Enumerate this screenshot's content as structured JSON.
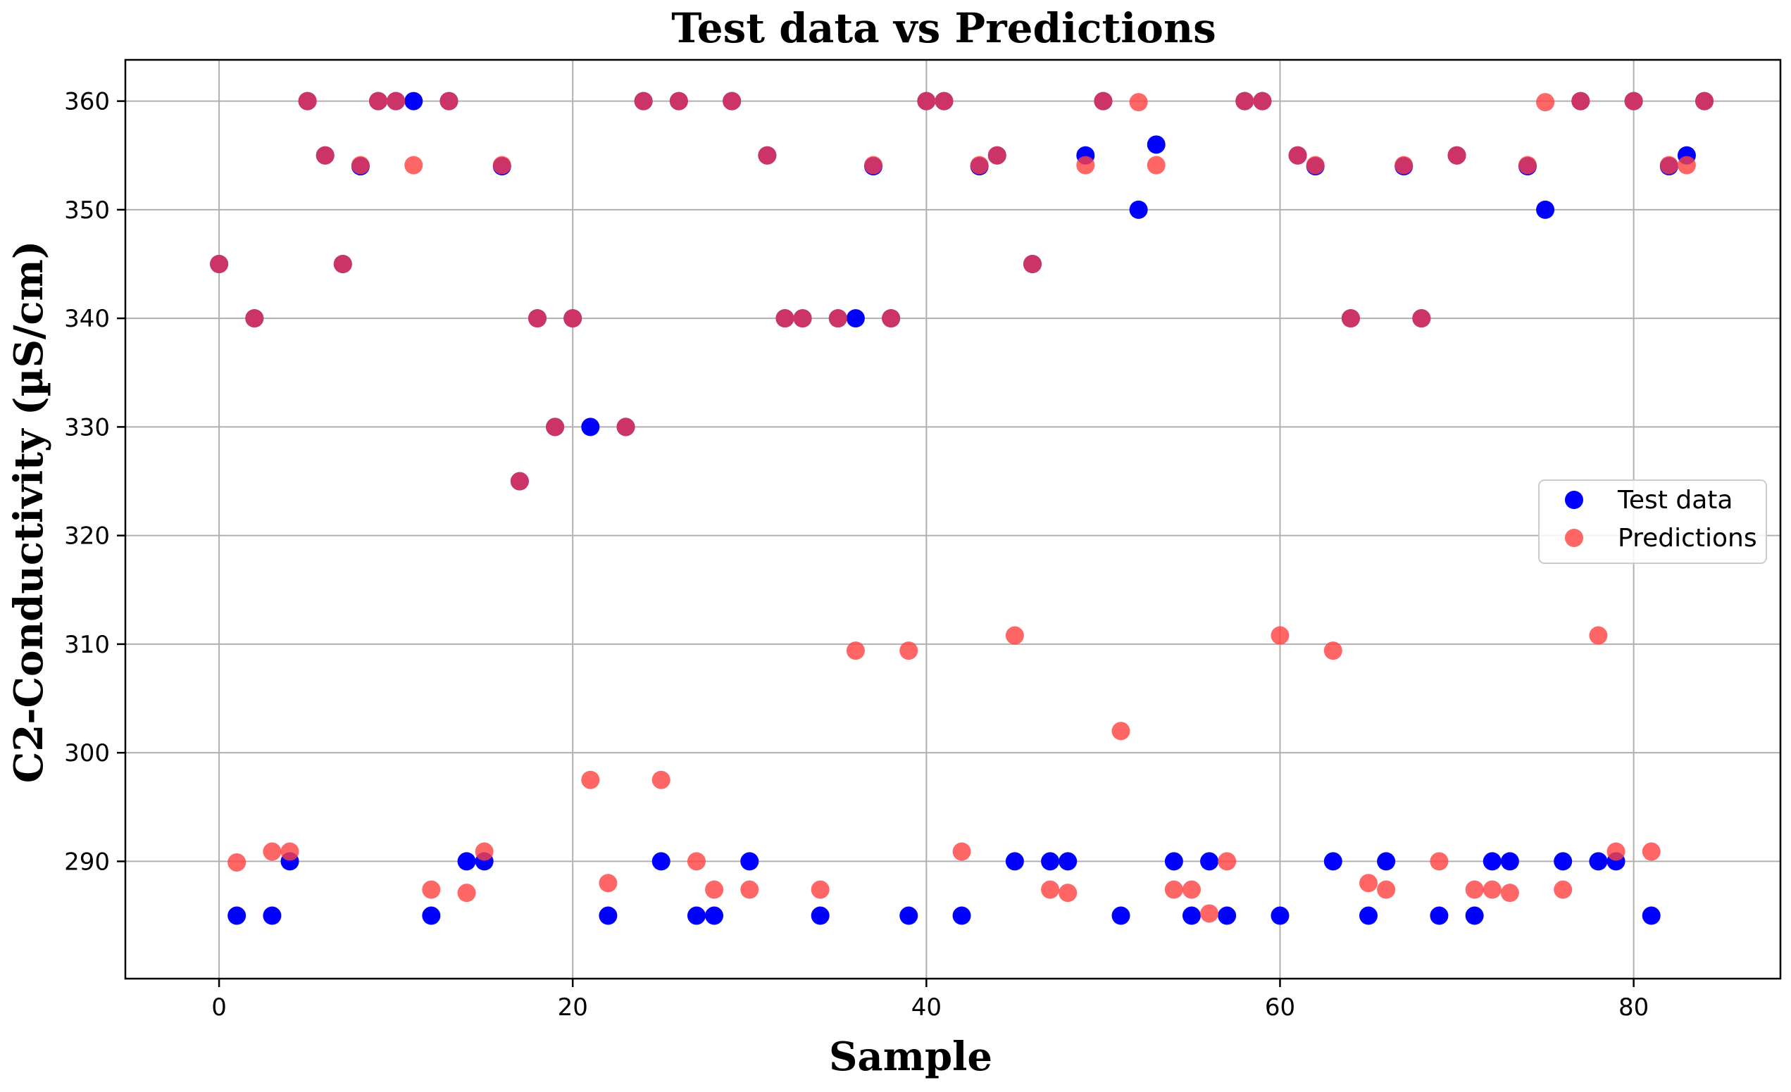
{
  "chart_data": {
    "type": "scatter",
    "title": "Test data vs Predictions",
    "xlabel": "Sample",
    "ylabel": "C2-Conductivity (µS/cm)",
    "xlim": [
      -5.3,
      88.3
    ],
    "ylim": [
      279.2,
      363.8
    ],
    "xticks": [
      0,
      20,
      40,
      60,
      80
    ],
    "yticks": [
      290,
      300,
      310,
      320,
      330,
      340,
      350,
      360
    ],
    "grid": true,
    "legend_position": "center-right",
    "series": [
      {
        "name": "Test data",
        "color": "#0000ff",
        "opacity": 1.0,
        "x": [
          0,
          1,
          2,
          3,
          4,
          5,
          6,
          7,
          8,
          9,
          10,
          11,
          12,
          13,
          14,
          15,
          16,
          17,
          18,
          19,
          20,
          21,
          22,
          23,
          24,
          25,
          26,
          27,
          28,
          29,
          30,
          31,
          32,
          33,
          34,
          35,
          36,
          37,
          38,
          39,
          40,
          41,
          42,
          43,
          44,
          45,
          46,
          47,
          48,
          49,
          50,
          51,
          52,
          53,
          54,
          55,
          56,
          57,
          58,
          59,
          60,
          61,
          62,
          63,
          64,
          65,
          66,
          67,
          68,
          69,
          70,
          71,
          72,
          73,
          74,
          75,
          76,
          77,
          78,
          79,
          80,
          81,
          82,
          83,
          84
        ],
        "y": [
          345,
          285,
          340,
          285,
          290,
          360,
          355,
          345,
          354,
          360,
          360,
          360,
          285,
          360,
          290,
          290,
          354,
          325,
          340,
          330,
          340,
          330,
          285,
          330,
          360,
          290,
          360,
          285,
          285,
          360,
          290,
          355,
          340,
          340,
          285,
          340,
          340,
          354,
          340,
          285,
          360,
          360,
          285,
          354,
          355,
          290,
          345,
          290,
          290,
          355,
          360,
          285,
          350,
          356,
          290,
          285,
          290,
          285,
          360,
          360,
          285,
          355,
          354,
          290,
          340,
          285,
          290,
          354,
          340,
          285,
          355,
          285,
          290,
          290,
          354,
          350,
          290,
          360,
          290,
          290,
          360,
          285,
          354,
          355,
          360
        ]
      },
      {
        "name": "Predictions",
        "color": "#ff4040",
        "opacity": 0.8,
        "x": [
          0,
          1,
          2,
          3,
          4,
          5,
          6,
          7,
          8,
          9,
          10,
          11,
          12,
          13,
          14,
          15,
          16,
          17,
          18,
          19,
          20,
          21,
          22,
          23,
          24,
          25,
          26,
          27,
          28,
          29,
          30,
          31,
          32,
          33,
          34,
          35,
          36,
          37,
          38,
          39,
          40,
          41,
          42,
          43,
          44,
          45,
          46,
          47,
          48,
          49,
          50,
          51,
          52,
          53,
          54,
          55,
          56,
          57,
          58,
          59,
          60,
          61,
          62,
          63,
          64,
          65,
          66,
          67,
          68,
          69,
          70,
          71,
          72,
          73,
          74,
          75,
          76,
          77,
          78,
          79,
          80,
          81,
          82,
          83,
          84
        ],
        "y": [
          345,
          289.9,
          340,
          290.9,
          290.9,
          360,
          355,
          345,
          354.1,
          360,
          360,
          354.1,
          287.4,
          360,
          287.1,
          290.9,
          354.1,
          325,
          340,
          330,
          340,
          297.5,
          288,
          330,
          360,
          297.5,
          360,
          290,
          287.4,
          360,
          287.4,
          355,
          340,
          340,
          287.4,
          340,
          309.4,
          354.1,
          340,
          309.4,
          360,
          360,
          290.9,
          354.1,
          355,
          310.8,
          345,
          287.4,
          287.1,
          354.1,
          360,
          302,
          359.9,
          354.1,
          287.4,
          287.4,
          285.2,
          290,
          360,
          360,
          310.8,
          355,
          354.1,
          309.4,
          340,
          288,
          287.4,
          354.1,
          340,
          290,
          355,
          287.4,
          287.4,
          287.1,
          354.1,
          359.9,
          287.4,
          360,
          310.8,
          290.9,
          360,
          290.9,
          354.1,
          354.1,
          360
        ]
      }
    ]
  }
}
